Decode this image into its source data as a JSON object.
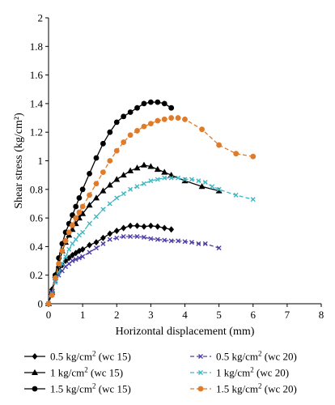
{
  "chart_data": {
    "type": "line",
    "xlabel": "Horizontal displacement (mm)",
    "ylabel": "Shear stress (kg/cm²)",
    "xlim": [
      0,
      8
    ],
    "ylim": [
      0,
      2
    ],
    "x_ticks": [
      "0",
      "1",
      "2",
      "3",
      "4",
      "5",
      "6",
      "7",
      "8"
    ],
    "y_ticks": [
      "0",
      "0.2",
      "0.4",
      "0.6",
      "0.8",
      "1",
      "1.2",
      "1.4",
      "1.6",
      "1.8",
      "2"
    ],
    "grid": false,
    "legend_position": "bottom",
    "series": [
      {
        "name": "0.5 kg/cm² (wc 15)",
        "legend_main": "0.5 kg/cm",
        "legend_tail": " (wc 15)",
        "color": "#000000",
        "marker": "diamond",
        "dash": "solid",
        "x": [
          0,
          0.1,
          0.2,
          0.3,
          0.4,
          0.5,
          0.6,
          0.7,
          0.8,
          0.9,
          1.0,
          1.2,
          1.4,
          1.6,
          1.8,
          2.0,
          2.2,
          2.4,
          2.6,
          2.8,
          3.0,
          3.2,
          3.4,
          3.6
        ],
        "y": [
          0,
          0.1,
          0.17,
          0.23,
          0.27,
          0.3,
          0.32,
          0.34,
          0.355,
          0.37,
          0.38,
          0.41,
          0.43,
          0.46,
          0.49,
          0.51,
          0.53,
          0.545,
          0.545,
          0.54,
          0.545,
          0.54,
          0.53,
          0.52
        ]
      },
      {
        "name": "1 kg/cm² (wc 15)",
        "legend_main": "1 kg/cm",
        "legend_tail": " (wc 15)",
        "color": "#000000",
        "marker": "triangle",
        "dash": "solid",
        "x": [
          0,
          0.1,
          0.2,
          0.3,
          0.4,
          0.5,
          0.6,
          0.7,
          0.8,
          0.9,
          1.0,
          1.2,
          1.4,
          1.6,
          1.8,
          2.0,
          2.2,
          2.4,
          2.6,
          2.8,
          3.0,
          3.2,
          3.4,
          3.6,
          4.0,
          4.5,
          5.0
        ],
        "y": [
          0,
          0.08,
          0.2,
          0.27,
          0.37,
          0.43,
          0.48,
          0.52,
          0.56,
          0.6,
          0.63,
          0.69,
          0.74,
          0.79,
          0.83,
          0.87,
          0.9,
          0.93,
          0.95,
          0.97,
          0.96,
          0.94,
          0.92,
          0.9,
          0.86,
          0.82,
          0.79
        ]
      },
      {
        "name": "1.5 kg/cm² (wc 15)",
        "legend_main": "1.5 kg/cm",
        "legend_tail": " (wc 15)",
        "color": "#000000",
        "marker": "circle",
        "dash": "solid",
        "x": [
          0,
          0.1,
          0.2,
          0.3,
          0.4,
          0.5,
          0.6,
          0.7,
          0.8,
          0.9,
          1.0,
          1.2,
          1.4,
          1.6,
          1.8,
          2.0,
          2.2,
          2.4,
          2.6,
          2.8,
          3.0,
          3.2,
          3.4,
          3.6
        ],
        "y": [
          0,
          0.08,
          0.2,
          0.32,
          0.42,
          0.5,
          0.56,
          0.62,
          0.68,
          0.74,
          0.8,
          0.91,
          1.02,
          1.12,
          1.2,
          1.27,
          1.31,
          1.34,
          1.37,
          1.4,
          1.41,
          1.41,
          1.4,
          1.37
        ]
      },
      {
        "name": "0.5 kg/cm² (wc 20)",
        "legend_main": "0.5 kg/cm",
        "legend_tail": " (wc 20)",
        "color": "#4c3ea8",
        "marker": "x",
        "dash": "dashed",
        "x": [
          0,
          0.1,
          0.2,
          0.3,
          0.4,
          0.5,
          0.6,
          0.7,
          0.8,
          0.9,
          1.0,
          1.2,
          1.4,
          1.6,
          1.8,
          2.0,
          2.2,
          2.4,
          2.6,
          2.8,
          3.0,
          3.2,
          3.4,
          3.6,
          3.8,
          4.0,
          4.2,
          4.4,
          4.6,
          5.0
        ],
        "y": [
          0,
          0.08,
          0.16,
          0.2,
          0.23,
          0.26,
          0.28,
          0.3,
          0.31,
          0.32,
          0.33,
          0.36,
          0.39,
          0.42,
          0.45,
          0.46,
          0.47,
          0.47,
          0.47,
          0.465,
          0.455,
          0.45,
          0.445,
          0.44,
          0.44,
          0.435,
          0.43,
          0.42,
          0.42,
          0.39
        ]
      },
      {
        "name": "1 kg/cm² (wc 20)",
        "legend_main": "1 kg/cm",
        "legend_tail": " (wc 20)",
        "color": "#3fb8c4",
        "marker": "x",
        "dash": "dashed",
        "x": [
          0,
          0.1,
          0.2,
          0.3,
          0.4,
          0.5,
          0.6,
          0.7,
          0.8,
          0.9,
          1.0,
          1.2,
          1.4,
          1.6,
          1.8,
          2.0,
          2.2,
          2.4,
          2.6,
          2.8,
          3.0,
          3.2,
          3.4,
          3.6,
          3.8,
          4.0,
          4.2,
          4.4,
          4.6,
          4.8,
          5.0,
          5.5,
          6.0
        ],
        "y": [
          0,
          0.07,
          0.15,
          0.22,
          0.28,
          0.33,
          0.38,
          0.42,
          0.45,
          0.48,
          0.5,
          0.56,
          0.61,
          0.66,
          0.7,
          0.74,
          0.77,
          0.8,
          0.82,
          0.84,
          0.86,
          0.87,
          0.88,
          0.88,
          0.88,
          0.87,
          0.87,
          0.86,
          0.85,
          0.82,
          0.8,
          0.76,
          0.73
        ]
      },
      {
        "name": "1.5 kg/cm² (wc 20)",
        "legend_main": "1.5 kg/cm",
        "legend_tail": " (wc 20)",
        "color": "#e07b2a",
        "marker": "circle",
        "dash": "dashed",
        "x": [
          0,
          0.1,
          0.2,
          0.3,
          0.4,
          0.5,
          0.6,
          0.7,
          0.8,
          0.9,
          1.0,
          1.2,
          1.4,
          1.6,
          1.8,
          2.0,
          2.2,
          2.4,
          2.6,
          2.8,
          3.0,
          3.2,
          3.4,
          3.6,
          3.8,
          4.0,
          4.5,
          5.0,
          5.5,
          6.0
        ],
        "y": [
          0,
          0.06,
          0.18,
          0.28,
          0.37,
          0.44,
          0.5,
          0.55,
          0.6,
          0.64,
          0.68,
          0.76,
          0.84,
          0.92,
          1.0,
          1.07,
          1.13,
          1.18,
          1.21,
          1.24,
          1.26,
          1.28,
          1.29,
          1.3,
          1.3,
          1.29,
          1.22,
          1.11,
          1.05,
          1.03
        ]
      }
    ]
  }
}
